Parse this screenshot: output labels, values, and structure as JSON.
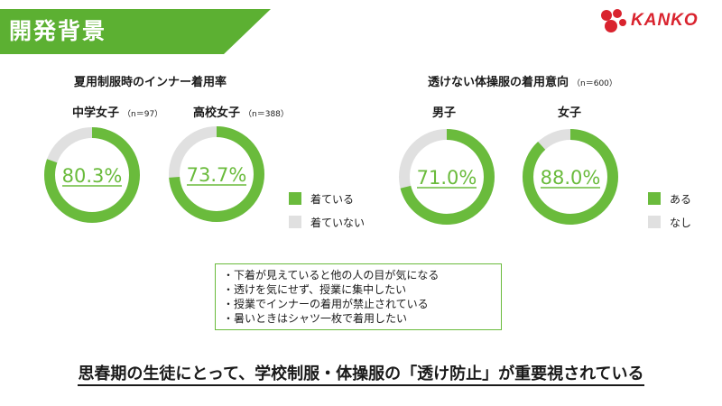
{
  "header": {
    "title": "開発背景",
    "title_bg": "#5cb032",
    "logo_text": "KANKO",
    "logo_color": "#d9232e"
  },
  "colors": {
    "primary": "#6abb3c",
    "secondary": "#e0e0e0"
  },
  "section_left": {
    "title": "夏用制服時のインナー着用率",
    "groups": [
      {
        "label": "中学女子",
        "n": "（n＝97）"
      },
      {
        "label": "高校女子",
        "n": "（n＝388）"
      }
    ],
    "legend": [
      "着ている",
      "着ていない"
    ]
  },
  "section_right": {
    "title": "透けない体操服の着用意向",
    "n": "（n＝600）",
    "groups": [
      {
        "label": "男子"
      },
      {
        "label": "女子"
      }
    ],
    "legend": [
      "ある",
      "なし"
    ]
  },
  "chart_data": [
    {
      "type": "pie",
      "title": "中学女子",
      "labels": [
        "着ている",
        "着ていない"
      ],
      "values": [
        80.3,
        19.7
      ],
      "display": "80.3%"
    },
    {
      "type": "pie",
      "title": "高校女子",
      "labels": [
        "着ている",
        "着ていない"
      ],
      "values": [
        73.7,
        26.3
      ],
      "display": "73.7%"
    },
    {
      "type": "pie",
      "title": "男子",
      "labels": [
        "ある",
        "なし"
      ],
      "values": [
        71.0,
        29.0
      ],
      "display": "71.0%"
    },
    {
      "type": "pie",
      "title": "女子",
      "labels": [
        "ある",
        "なし"
      ],
      "values": [
        88.0,
        12.0
      ],
      "display": "88.0%"
    }
  ],
  "notes": [
    "下着が見えていると他の人の目が気になる",
    "透けを気にせず、授業に集中したい",
    "授業でインナーの着用が禁止されている",
    "暑いときはシャツ一枚で着用したい"
  ],
  "conclusion": "思春期の生徒にとって、学校制服・体操服の「透け防止」が重要視されている"
}
